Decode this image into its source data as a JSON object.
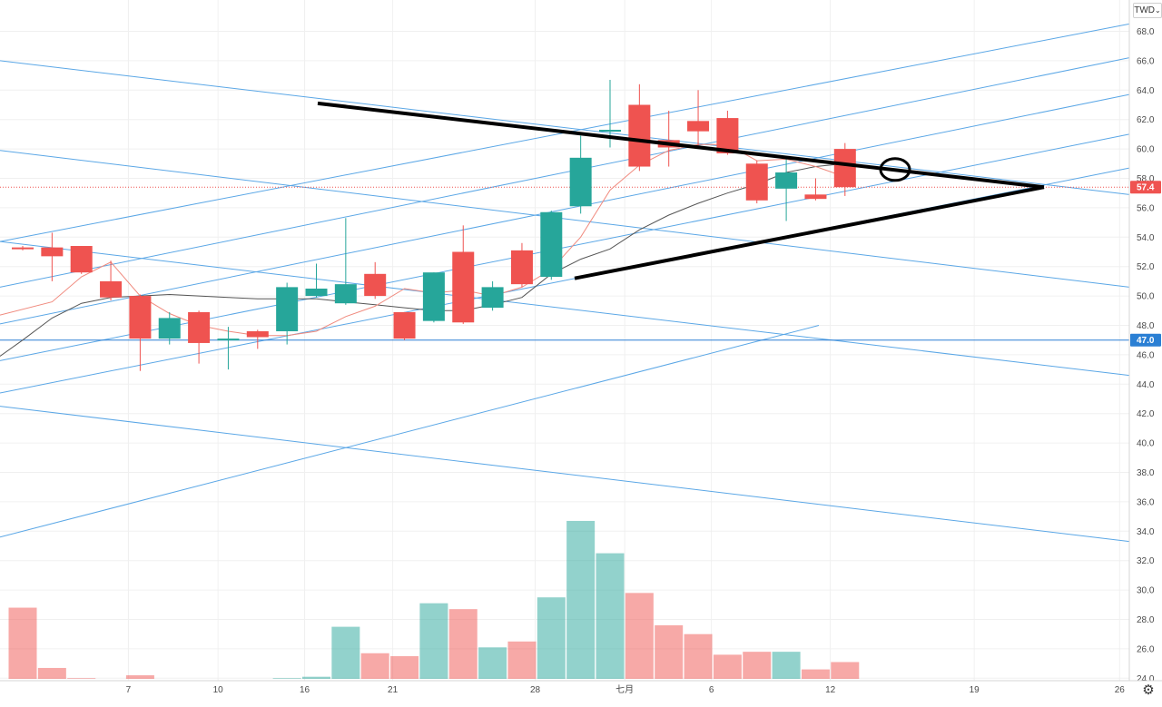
{
  "currency_button": "TWD",
  "chart_data": {
    "type": "candlestick",
    "title": "",
    "xlabel": "",
    "ylabel": "",
    "ylim": [
      23.0,
      68.6
    ],
    "y_ticks": [
      24.0,
      26.0,
      28.0,
      30.0,
      32.0,
      34.0,
      36.0,
      38.0,
      40.0,
      42.0,
      44.0,
      46.0,
      48.0,
      50.0,
      52.0,
      54.0,
      56.0,
      58.0,
      60.0,
      62.0,
      64.0,
      66.0,
      68.0
    ],
    "x_tick_labels": [
      "7",
      "10",
      "16",
      "21",
      "28",
      "七月",
      "6",
      "12",
      "19",
      "26"
    ],
    "grid": true,
    "last_price": 57.4,
    "horizontal_level": 47.0,
    "up_color": "#26a69a",
    "down_color": "#ef5350",
    "candles": [
      {
        "dir": "down",
        "open": 53.3,
        "close": 53.2,
        "high": 53.4,
        "low": 53.1
      },
      {
        "dir": "down",
        "open": 53.3,
        "close": 52.7,
        "high": 54.3,
        "low": 51.0
      },
      {
        "dir": "down",
        "open": 53.4,
        "close": 51.6,
        "high": 53.4,
        "low": 51.5
      },
      {
        "dir": "down",
        "open": 51.0,
        "close": 49.9,
        "high": 52.4,
        "low": 49.7
      },
      {
        "dir": "down",
        "open": 50.0,
        "close": 47.1,
        "high": 50.1,
        "low": 44.9
      },
      {
        "dir": "up",
        "open": 47.1,
        "close": 48.5,
        "high": 48.9,
        "low": 46.7
      },
      {
        "dir": "down",
        "open": 48.9,
        "close": 46.8,
        "high": 49.0,
        "low": 45.4
      },
      {
        "dir": "up",
        "open": 47.0,
        "close": 47.1,
        "high": 47.9,
        "low": 45.0
      },
      {
        "dir": "down",
        "open": 47.6,
        "close": 47.2,
        "high": 47.7,
        "low": 46.4
      },
      {
        "dir": "up",
        "open": 47.6,
        "close": 50.6,
        "high": 50.9,
        "low": 46.7
      },
      {
        "dir": "up",
        "open": 50.0,
        "close": 50.5,
        "high": 52.2,
        "low": 49.9
      },
      {
        "dir": "up",
        "open": 49.5,
        "close": 50.8,
        "high": 55.3,
        "low": 49.4
      },
      {
        "dir": "down",
        "open": 51.5,
        "close": 50.0,
        "high": 52.3,
        "low": 49.8
      },
      {
        "dir": "down",
        "open": 48.9,
        "close": 47.1,
        "high": 48.9,
        "low": 47.0
      },
      {
        "dir": "up",
        "open": 48.3,
        "close": 51.6,
        "high": 51.6,
        "low": 48.2
      },
      {
        "dir": "down",
        "open": 53.0,
        "close": 48.2,
        "high": 54.8,
        "low": 48.1
      },
      {
        "dir": "up",
        "open": 49.2,
        "close": 50.6,
        "high": 51.0,
        "low": 49.0
      },
      {
        "dir": "down",
        "open": 53.1,
        "close": 50.8,
        "high": 53.6,
        "low": 50.6
      },
      {
        "dir": "up",
        "open": 51.3,
        "close": 55.7,
        "high": 55.8,
        "low": 51.1
      },
      {
        "dir": "up",
        "open": 56.1,
        "close": 59.4,
        "high": 60.9,
        "low": 55.6
      },
      {
        "dir": "up",
        "open": 61.2,
        "close": 61.3,
        "high": 64.7,
        "low": 60.1
      },
      {
        "dir": "down",
        "open": 63.0,
        "close": 58.8,
        "high": 64.4,
        "low": 58.5
      },
      {
        "dir": "down",
        "open": 60.6,
        "close": 60.1,
        "high": 62.6,
        "low": 58.8
      },
      {
        "dir": "down",
        "open": 61.9,
        "close": 61.2,
        "high": 64.0,
        "low": 60.2
      },
      {
        "dir": "down",
        "open": 62.1,
        "close": 59.7,
        "high": 62.6,
        "low": 59.6
      },
      {
        "dir": "down",
        "open": 59.0,
        "close": 56.5,
        "high": 59.2,
        "low": 56.3
      },
      {
        "dir": "up",
        "open": 57.3,
        "close": 58.4,
        "high": 59.4,
        "low": 55.1
      },
      {
        "dir": "down",
        "open": 56.9,
        "close": 56.6,
        "high": 58.0,
        "low": 56.5
      },
      {
        "dir": "down",
        "open": 60.0,
        "close": 57.4,
        "high": 60.4,
        "low": 56.8
      }
    ],
    "volumes": [
      28.8,
      24.7,
      24.0,
      23.9,
      24.2,
      23.5,
      23.7,
      23.8,
      23.5,
      24.0,
      24.1,
      27.5,
      25.7,
      25.5,
      29.1,
      28.7,
      26.1,
      26.5,
      29.5,
      34.7,
      32.5,
      29.8,
      27.6,
      27.0,
      25.6,
      25.8,
      25.8,
      24.6,
      25.1
    ],
    "ma_fast": [
      null,
      49.6,
      51.3,
      52.3,
      50.0,
      48.8,
      48.0,
      47.6,
      47.3,
      47.3,
      47.6,
      48.6,
      49.3,
      50.5,
      50.2,
      50.4,
      50.0,
      50.6,
      51.8,
      54.0,
      57.2,
      58.9,
      59.9,
      60.3,
      60.3,
      59.2,
      59.3,
      58.8,
      58.1
    ],
    "ma_slow": [
      47.0,
      48.5,
      49.5,
      49.9,
      50.0,
      50.1,
      50.0,
      49.9,
      49.8,
      49.8,
      49.8,
      49.6,
      49.4,
      49.2,
      49.0,
      49.0,
      49.4,
      49.9,
      51.5,
      52.5,
      53.2,
      54.5,
      55.5,
      56.3,
      57.0,
      57.6,
      58.4,
      58.8,
      59.0
    ]
  }
}
